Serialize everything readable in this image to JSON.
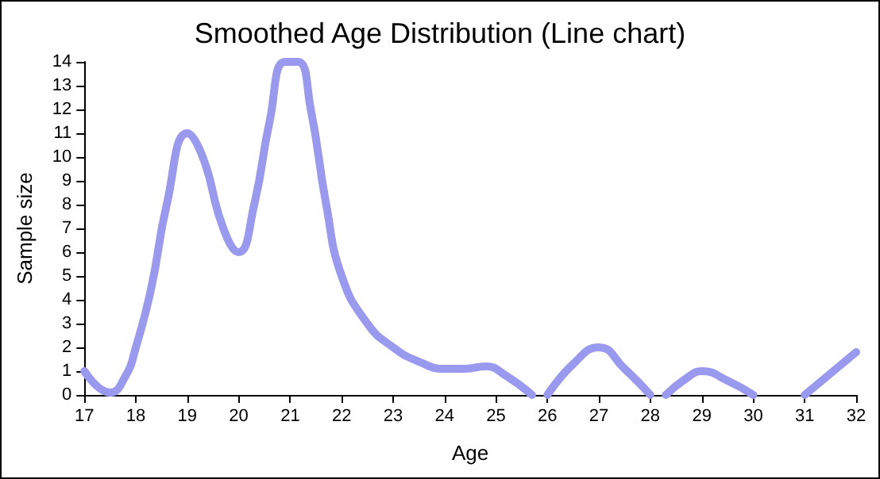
{
  "chart_data": {
    "type": "line",
    "title": "Smoothed Age Distribution (Line chart)",
    "xlabel": "Age",
    "ylabel": "Sample size",
    "x": [
      17,
      17.5,
      17.8,
      18,
      18.3,
      18.6,
      19,
      19.3,
      19.7,
      20,
      20.3,
      20.6,
      20.9,
      21.15,
      21.4,
      21.7,
      22,
      22.5,
      23,
      23.5,
      24,
      24.4,
      24.8,
      25.2,
      25.7,
      25.85,
      26,
      26.5,
      27,
      27.5,
      28,
      28.15,
      28.3,
      28.7,
      29,
      29.5,
      30,
      30.5,
      31,
      31.5,
      32
    ],
    "series": [
      {
        "color": "#9999f0",
        "values": [
          1,
          0.1,
          0.8,
          2,
          4.5,
          8,
          11,
          10,
          7,
          6,
          8,
          11.5,
          14,
          14,
          12,
          8,
          5,
          3,
          2,
          1.4,
          1.1,
          1.1,
          1.2,
          0.8,
          0,
          null,
          0,
          1.3,
          2,
          1.1,
          0,
          null,
          0,
          0.7,
          1,
          0.6,
          0,
          null,
          0,
          0.9,
          1.8
        ]
      }
    ],
    "xlim": [
      17,
      32
    ],
    "xticks": [
      17,
      18,
      19,
      20,
      21,
      22,
      23,
      24,
      25,
      26,
      27,
      28,
      29,
      30,
      31,
      32
    ],
    "ylim": [
      0,
      14
    ],
    "yticks": [
      0,
      1,
      2,
      3,
      4,
      5,
      6,
      7,
      8,
      9,
      10,
      11,
      12,
      13,
      14
    ],
    "grid": false,
    "marker": "none",
    "line_style": "solid"
  }
}
